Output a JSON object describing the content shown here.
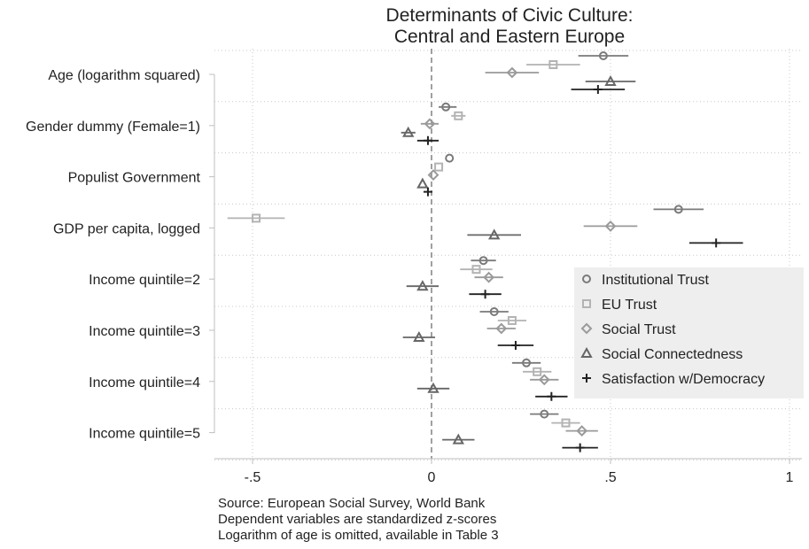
{
  "chart_data": {
    "type": "scatter",
    "title": [
      "Determinants of Civic Culture:",
      "Central and Eastern Europe"
    ],
    "categories": [
      "Age (logarithm squared)",
      "Gender dummy (Female=1)",
      "Populist Government",
      "GDP per capita, logged",
      "Income quintile=2",
      "Income quintile=3",
      "Income quintile=4",
      "Income quintile=5"
    ],
    "xlim": [
      -0.57,
      1.02
    ],
    "xticks": [
      -0.5,
      0,
      0.5,
      1
    ],
    "xtick_labels": [
      "-.5",
      "0",
      ".5",
      "1"
    ],
    "reference_line": 0,
    "series": [
      {
        "name": "Institutional Trust",
        "marker": "circle",
        "color": "#7a7a7a",
        "estimates": [
          0.48,
          0.04,
          0.05,
          0.69,
          0.145,
          0.175,
          0.265,
          0.315
        ],
        "ci_low": [
          0.41,
          0.02,
          null,
          0.62,
          0.11,
          0.135,
          0.225,
          0.275
        ],
        "ci_high": [
          0.55,
          0.07,
          null,
          0.76,
          0.18,
          0.215,
          0.305,
          0.355
        ]
      },
      {
        "name": "EU Trust",
        "marker": "square",
        "color": "#b3b3b3",
        "estimates": [
          0.34,
          0.075,
          0.02,
          -0.49,
          0.125,
          0.225,
          0.295,
          0.375
        ],
        "ci_low": [
          0.265,
          0.055,
          null,
          -0.57,
          0.08,
          0.185,
          0.255,
          0.335
        ],
        "ci_high": [
          0.415,
          0.095,
          null,
          -0.41,
          0.17,
          0.265,
          0.335,
          0.415
        ]
      },
      {
        "name": "Social Trust",
        "marker": "diamond",
        "color": "#9a9a9a",
        "estimates": [
          0.225,
          -0.005,
          0.005,
          0.5,
          0.16,
          0.195,
          0.315,
          0.42
        ],
        "ci_low": [
          0.15,
          -0.03,
          null,
          0.425,
          0.12,
          0.155,
          0.275,
          0.375
        ],
        "ci_high": [
          0.3,
          0.02,
          null,
          0.575,
          0.2,
          0.235,
          0.355,
          0.465
        ]
      },
      {
        "name": "Social Connectedness",
        "marker": "triangle",
        "color": "#666666",
        "estimates": [
          0.5,
          -0.065,
          -0.025,
          0.175,
          -0.025,
          -0.035,
          0.005,
          0.075
        ],
        "ci_low": [
          0.43,
          -0.085,
          null,
          0.1,
          -0.07,
          -0.08,
          -0.04,
          0.03
        ],
        "ci_high": [
          0.57,
          -0.045,
          null,
          0.25,
          0.02,
          0.01,
          0.05,
          0.12
        ]
      },
      {
        "name": "Satisfaction w/Democracy",
        "marker": "plus",
        "color": "#222222",
        "estimates": [
          0.465,
          -0.01,
          -0.01,
          0.795,
          0.15,
          0.235,
          0.335,
          0.415
        ],
        "ci_low": [
          0.39,
          -0.04,
          null,
          0.72,
          0.105,
          0.185,
          0.29,
          0.365
        ],
        "ci_high": [
          0.54,
          0.02,
          null,
          0.87,
          0.195,
          0.285,
          0.38,
          0.465
        ]
      }
    ],
    "legend_position": "right",
    "notes": [
      "Source:  European Social Survey, World Bank",
      "Dependent variables are standardized z-scores",
      "Logarithm of age is omitted, available in Table 3"
    ]
  }
}
